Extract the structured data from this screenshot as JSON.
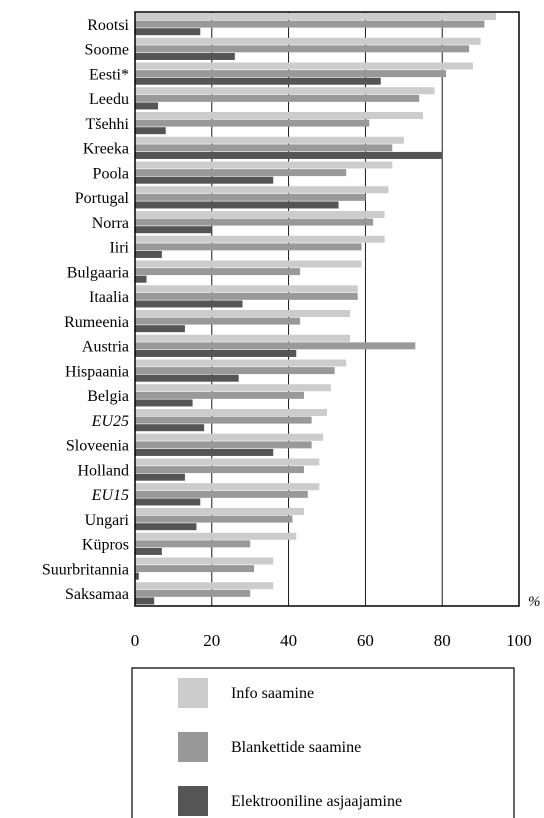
{
  "chart_data": {
    "type": "bar",
    "orientation": "horizontal",
    "title": "",
    "xlabel": "",
    "ylabel": "",
    "unit": "%",
    "xlim": [
      0,
      100
    ],
    "x_ticks": [
      "0",
      "20",
      "40",
      "60",
      "80",
      "100"
    ],
    "grid": "vertical",
    "legend_position": "bottom",
    "categories": [
      "Rootsi",
      "Soome",
      "Eesti*",
      "Leedu",
      "Tšehhi",
      "Kreeka",
      "Poola",
      "Portugal",
      "Norra",
      "Iiri",
      "Bulgaaria",
      "Itaalia",
      "Rumeenia",
      "Austria",
      "Hispaania",
      "Belgia",
      "EU25",
      "Sloveenia",
      "Holland",
      "EU15",
      "Ungari",
      "Küpros",
      "Suurbritannia",
      "Saksamaa"
    ],
    "italic_categories": [
      "EU25",
      "EU15"
    ],
    "series": [
      {
        "name": "Info saamine",
        "color": "#cccccc",
        "values": [
          94,
          90,
          88,
          78,
          75,
          70,
          67,
          66,
          65,
          65,
          59,
          58,
          56,
          56,
          55,
          51,
          50,
          49,
          48,
          48,
          44,
          42,
          36,
          36
        ]
      },
      {
        "name": "Blankettide saamine",
        "color": "#999999",
        "values": [
          91,
          87,
          81,
          74,
          61,
          67,
          55,
          60,
          62,
          59,
          43,
          58,
          43,
          73,
          52,
          44,
          46,
          46,
          44,
          45,
          41,
          30,
          31,
          30
        ]
      },
      {
        "name": "Elektrooniline asjaajamine",
        "color": "#555555",
        "values": [
          17,
          26,
          64,
          6,
          8,
          80,
          36,
          53,
          20,
          7,
          3,
          28,
          13,
          42,
          27,
          15,
          18,
          36,
          13,
          17,
          16,
          7,
          1,
          5
        ]
      }
    ]
  }
}
